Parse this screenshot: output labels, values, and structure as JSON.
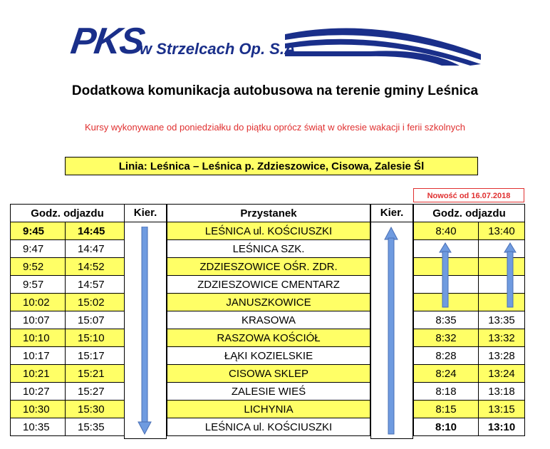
{
  "logo": {
    "brand": "PKS",
    "company": "w Strzelcach Op. S.A."
  },
  "title": "Dodatkowa komunikacja autobusowa na terenie gminy Leśnica",
  "subtitle": "Kursy wykonywane od poniedziałku do piątku oprócz świąt w okresie wakacji i ferii szkolnych",
  "line": "Linia: Leśnica – Leśnica p. Zdzieszowice, Cisowa, Zalesie Śl",
  "new_badge": "Nowość od 16.07.2018",
  "headers": {
    "dep_left": "Godz. odjazdu",
    "dir_left": "Kier.",
    "stop": "Przystanek",
    "dir_right": "Kier.",
    "dep_right": "Godz. odjazdu"
  },
  "colors": {
    "highlight": "#ffff66",
    "brand_blue": "#1a2f8a",
    "arrow_blue": "#6f9be0",
    "alert_red": "#e03030"
  },
  "rows": [
    {
      "l1": "9:45",
      "l2": "14:45",
      "stop": "LEŚNICA ul. KOŚCIUSZKI",
      "r1": "8:40",
      "r2": "13:40"
    },
    {
      "l1": "9:47",
      "l2": "14:47",
      "stop": "LEŚNICA SZK.",
      "r1": "",
      "r2": ""
    },
    {
      "l1": "9:52",
      "l2": "14:52",
      "stop": "ZDZIESZOWICE OŚR. ZDR.",
      "r1": "",
      "r2": ""
    },
    {
      "l1": "9:57",
      "l2": "14:57",
      "stop": "ZDZIESZOWICE CMENTARZ",
      "r1": "",
      "r2": ""
    },
    {
      "l1": "10:02",
      "l2": "15:02",
      "stop": "JANUSZKOWICE",
      "r1": "",
      "r2": ""
    },
    {
      "l1": "10:07",
      "l2": "15:07",
      "stop": "KRASOWA",
      "r1": "8:35",
      "r2": "13:35"
    },
    {
      "l1": "10:10",
      "l2": "15:10",
      "stop": "RASZOWA KOŚCIÓŁ",
      "r1": "8:32",
      "r2": "13:32"
    },
    {
      "l1": "10:17",
      "l2": "15:17",
      "stop": "ŁĄKI KOZIELSKIE",
      "r1": "8:28",
      "r2": "13:28"
    },
    {
      "l1": "10:21",
      "l2": "15:21",
      "stop": "CISOWA SKLEP",
      "r1": "8:24",
      "r2": "13:24"
    },
    {
      "l1": "10:27",
      "l2": "15:27",
      "stop": "ZALESIE WIEŚ",
      "r1": "8:18",
      "r2": "13:18"
    },
    {
      "l1": "10:30",
      "l2": "15:30",
      "stop": "LICHYNIA",
      "r1": "8:15",
      "r2": "13:15"
    },
    {
      "l1": "10:35",
      "l2": "15:35",
      "stop": "LEŚNICA ul. KOŚCIUSZKI",
      "r1": "8:10",
      "r2": "13:10"
    }
  ]
}
